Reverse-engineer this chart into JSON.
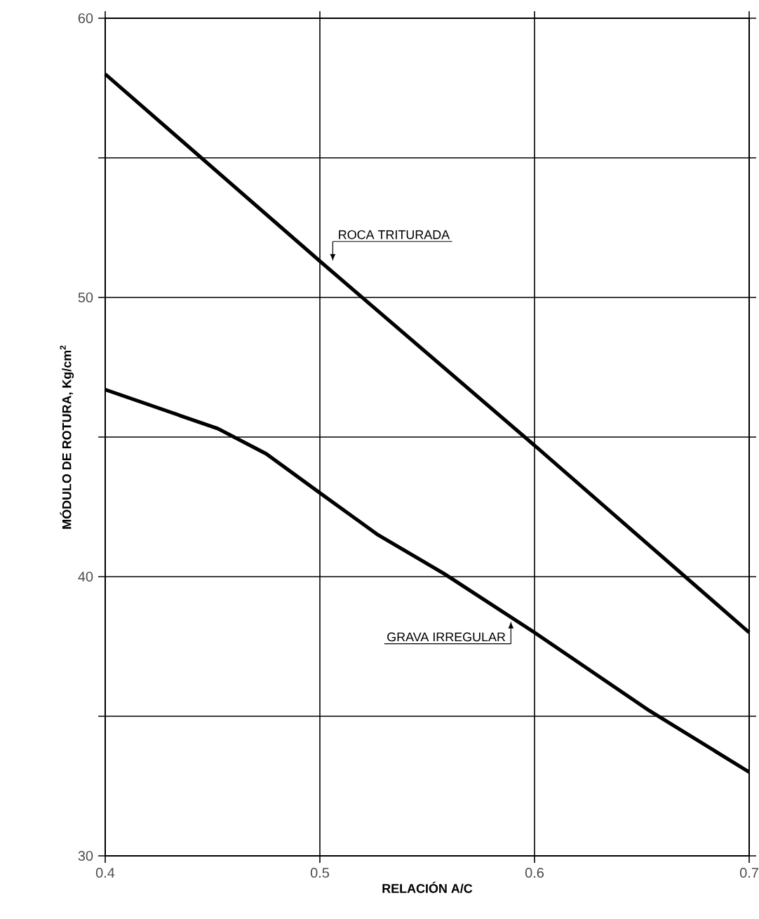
{
  "chart_data": {
    "type": "line",
    "xlabel": "RELACIÓN A/C",
    "ylabel": "MÓDULO DE ROTURA, Kg/cm$^{2}$",
    "xlim": [
      0.4,
      0.7
    ],
    "ylim": [
      30,
      60
    ],
    "xticks": [
      0.4,
      0.5,
      0.6,
      0.7
    ],
    "yticks": [
      30,
      {
        "value": 35,
        "label": null
      },
      40,
      {
        "value": 45,
        "label": null
      },
      50,
      {
        "value": 55,
        "label": null
      },
      60
    ],
    "grid": true,
    "marker": "none",
    "line_style": "solid",
    "series": [
      {
        "color": "#000000",
        "x": [
          0.4,
          0.5,
          0.6,
          0.7
        ],
        "values": [
          58.0,
          51.3,
          44.7,
          38.0
        ]
      },
      {
        "color": "#000000",
        "x": [
          0.4,
          0.43,
          0.4525,
          0.475,
          0.5,
          0.527,
          0.558,
          0.6,
          0.6535,
          0.7
        ],
        "values": [
          46.7,
          45.9,
          45.3,
          44.4,
          43.0,
          41.5,
          40.1,
          38.0,
          35.2,
          33.0
        ]
      }
    ],
    "annotations": [
      {
        "text": "ROCA TRITURADA",
        "x": 0.506,
        "y": 51.3
      },
      {
        "text": "GRAVA IRREGULAR",
        "x": 0.589,
        "y": 38.4
      }
    ]
  }
}
